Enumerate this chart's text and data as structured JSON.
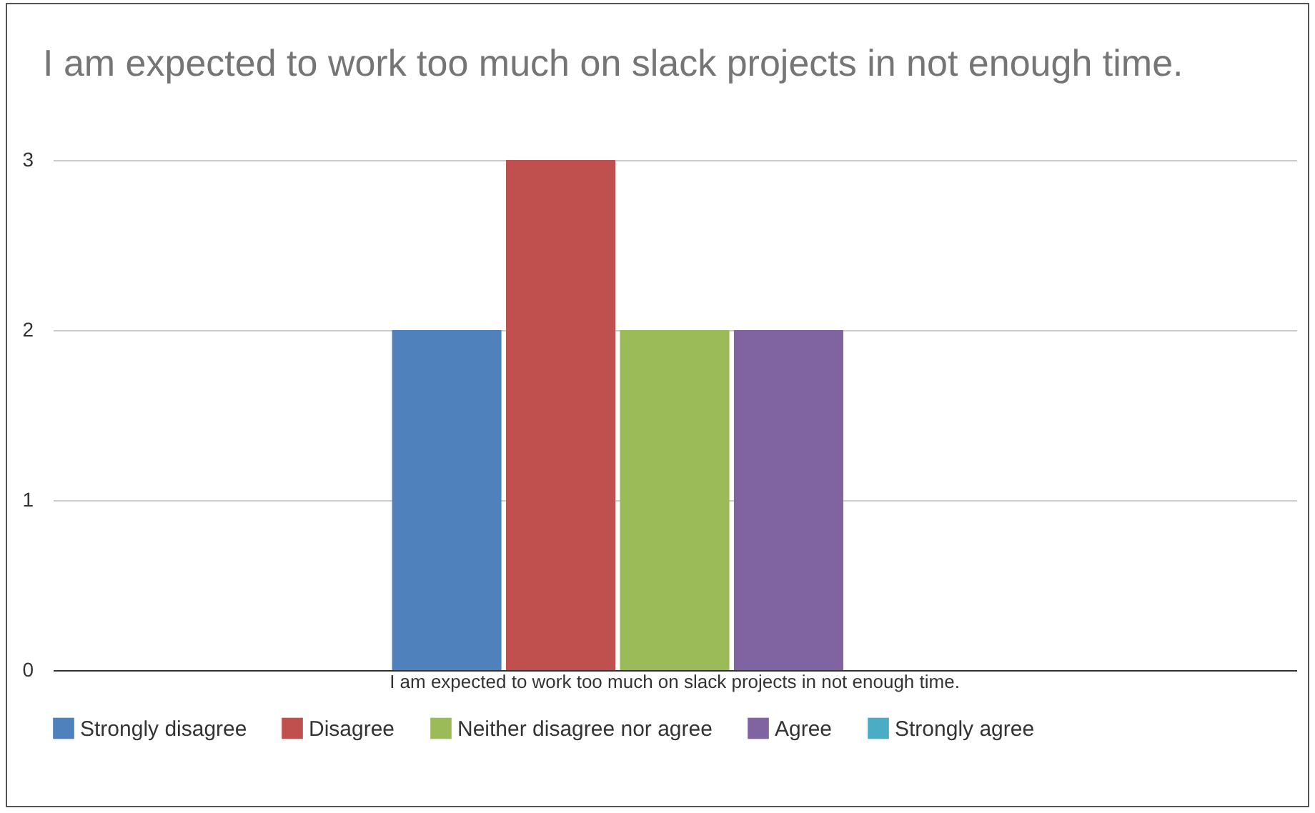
{
  "chart_data": {
    "type": "bar",
    "title": "I am expected to work too much on slack projects in not enough time.",
    "categories": [
      "I am expected to work too much on slack projects in not enough time."
    ],
    "series": [
      {
        "name": "Strongly disagree",
        "color": "#4f81bd",
        "values": [
          2
        ]
      },
      {
        "name": "Disagree",
        "color": "#c0504d",
        "values": [
          3
        ]
      },
      {
        "name": "Neither disagree nor agree",
        "color": "#9bbb59",
        "values": [
          2
        ]
      },
      {
        "name": "Agree",
        "color": "#8064a2",
        "values": [
          2
        ]
      },
      {
        "name": "Strongly agree",
        "color": "#4bacc6",
        "values": [
          0
        ]
      }
    ],
    "ylim": [
      0,
      3
    ],
    "yticks": [
      0,
      1,
      2,
      3
    ],
    "grid": "y",
    "legend": "bottom"
  }
}
